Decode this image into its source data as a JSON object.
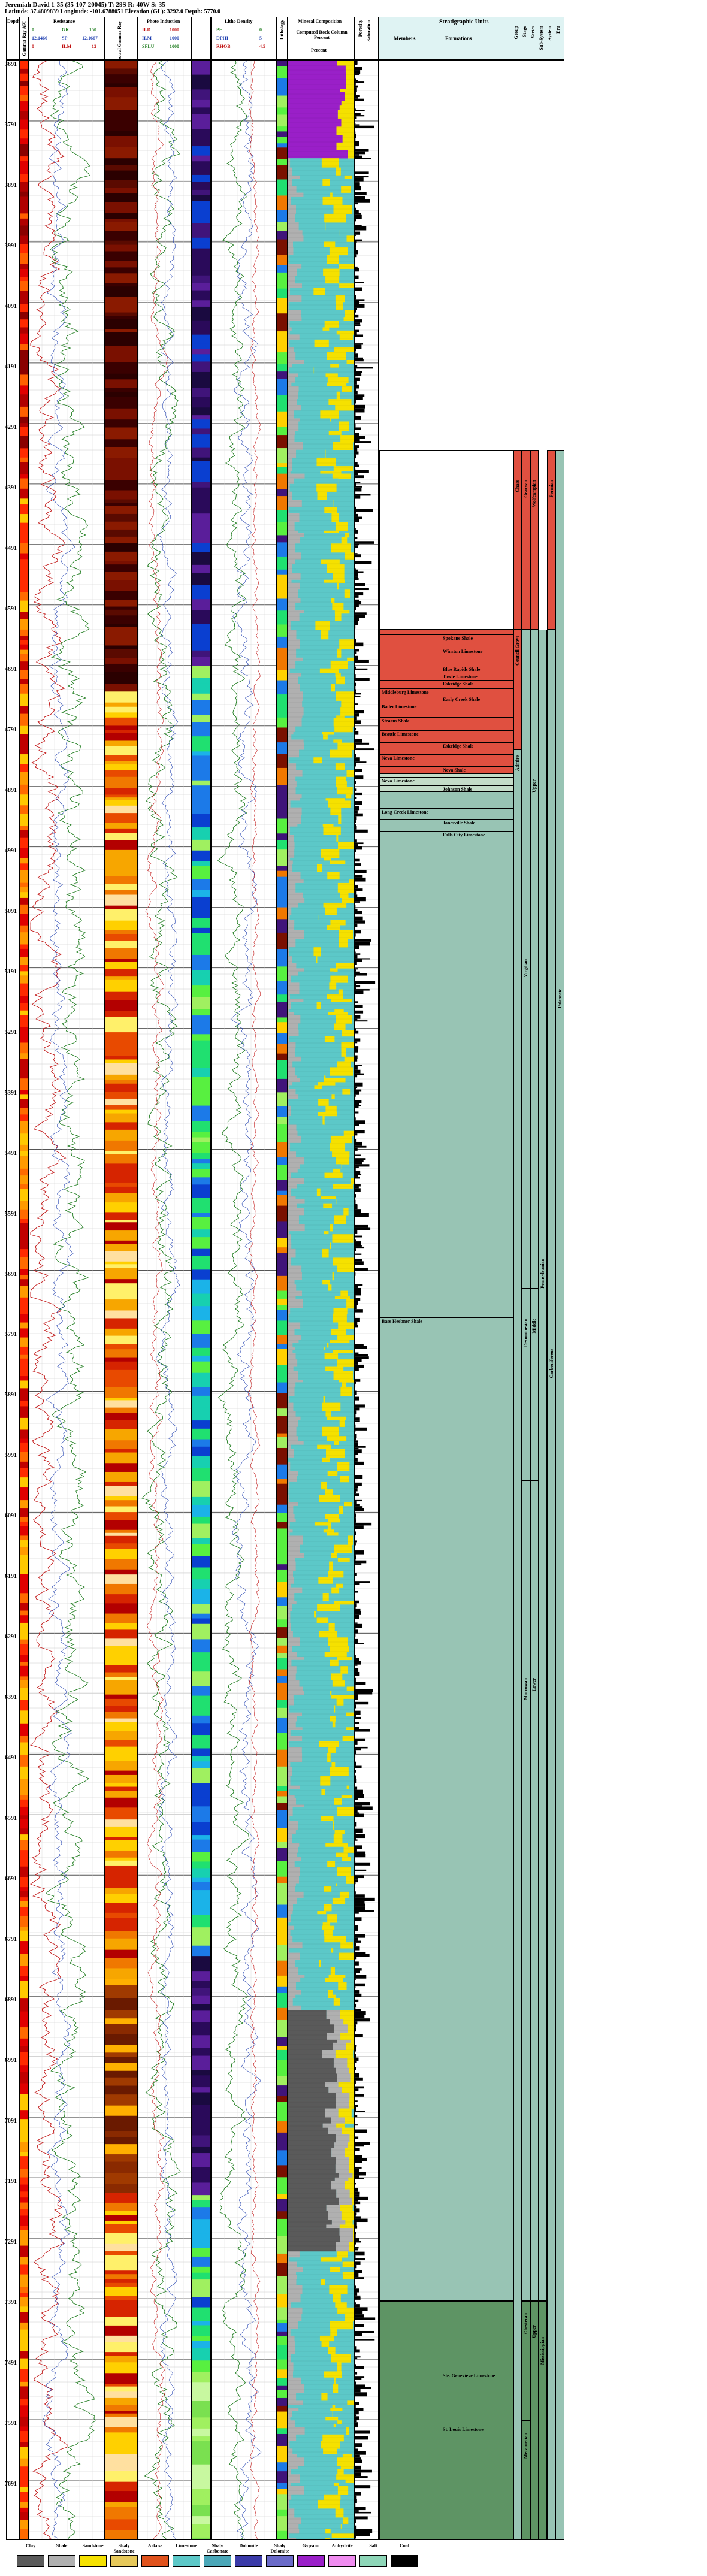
{
  "header": {
    "title": "Jeremiah David 1-35 (35-107-20045) T: 29S R: 40W S: 35",
    "subtitle": "Latitude: 37.4809839 Longitude: -101.6788051 Elevation (GL): 3292.0 Depth: 5770.0"
  },
  "tracks": {
    "depth_label": "Depth",
    "gr_label": "Gamma Ray API",
    "resistance_label": "Resistance",
    "res_labels": [
      "R",
      "GR",
      "SN",
      "LN"
    ],
    "res_values": [
      [
        "0",
        "GR",
        "150"
      ],
      [
        "12.1466",
        "SP",
        "12.1667"
      ],
      [
        "0",
        "ILM",
        "12"
      ]
    ],
    "spectral_label": "Spectral Gamma Ray",
    "photo_label": "Photo Induction",
    "photo_values": [
      "ILD",
      "1000",
      "ILM",
      "1000",
      "SFLU",
      "1000"
    ],
    "lith_density_label": "Litho Density",
    "lith_density_values": [
      "PE",
      "0",
      "DPHI",
      "5",
      "RHOB",
      "4.5"
    ],
    "lithology_label": "Lithology",
    "mineral_label": "Mineral Composition",
    "computed_label": "Computed Rock Column Percent",
    "computed_sub": "Percent",
    "porosity_label": "Porosity",
    "saturation_label": "Saturation"
  },
  "depth_ticks": [
    "3691",
    "3791",
    "3891",
    "3991",
    "4091",
    "4191",
    "4291",
    "4391",
    "4491",
    "4591",
    "4691",
    "4791",
    "4891",
    "4991",
    "5091",
    "5191",
    "5291",
    "5391",
    "5491",
    "5591",
    "5691",
    "5791",
    "5891",
    "5991",
    "6091",
    "6191",
    "6291",
    "6391",
    "6491",
    "6591",
    "6691",
    "6791",
    "6891",
    "6991",
    "7091",
    "7191",
    "7291",
    "7391",
    "7491",
    "7591",
    "7691"
  ],
  "strat": {
    "header": "Stratigraphic Units",
    "members_label": "Members",
    "formations_label": "Formations",
    "col_labels": [
      "Group",
      "Stage",
      "Series",
      "Sub-System",
      "System",
      "Era"
    ],
    "formations": [
      {
        "name": "Spokane Shale"
      },
      {
        "name": "Winston Limestone"
      },
      {
        "name": "Blue Rapids Shale"
      },
      {
        "name": "Towle Limestone"
      },
      {
        "name": "Eskridge Shale"
      },
      {
        "name": "Middleburg Limestone"
      },
      {
        "name": "Easly Creek Shale"
      },
      {
        "name": "Bader Limestone"
      },
      {
        "name": "Stearns Shale"
      },
      {
        "name": "Beattie Limestone"
      },
      {
        "name": "Eskridge Shale"
      },
      {
        "name": "Neva Limestone"
      },
      {
        "name": "Neva Shale"
      },
      {
        "name": "Neva Limestone"
      },
      {
        "name": "Johnson Shale"
      },
      {
        "name": "Long Creek Limestone"
      },
      {
        "name": "Janesville Shale"
      },
      {
        "name": "Falls City Limestone"
      },
      {
        "name": "Base Heebner Shale"
      },
      {
        "name": "Ste. Genevieve Limestone"
      },
      {
        "name": "St. Louis Limestone"
      }
    ],
    "groups": [
      "Chase",
      "Council Grove",
      "Admire"
    ],
    "stages": [
      "Virgilian",
      "Missourian",
      "Desmoinesian",
      "Atokan",
      "Morrowan",
      "Chesteran",
      "Meramecian"
    ],
    "series": [
      "Wolfcampian",
      "Gearyan",
      "Upper",
      "Middle",
      "Lower",
      "Upper"
    ],
    "subsystems": [
      "Pennsylvanian",
      "Mississippian"
    ],
    "systems": [
      "Permian",
      "Carboniferous"
    ],
    "era": "Paleozoic"
  },
  "legend": [
    {
      "label": "Clay",
      "color": "#5a5a5a"
    },
    {
      "label": "Shale",
      "color": "#b0b0b0"
    },
    {
      "label": "Sandstone",
      "color": "#f5e100"
    },
    {
      "label": "Shaly Sandstone",
      "color": "#e6c85a"
    },
    {
      "label": "Arkose",
      "color": "#e0521c"
    },
    {
      "label": "Limestone",
      "color": "#5cc8c8"
    },
    {
      "label": "Shaly Carbonate",
      "color": "#4aa7b8"
    },
    {
      "label": "Dolomite",
      "color": "#3a3aa8"
    },
    {
      "label": "Shaly Dolomite",
      "color": "#6a6ac8"
    },
    {
      "label": "Gypsum",
      "color": "#9a1fc8"
    },
    {
      "label": "Anhydrite",
      "color": "#f08cf0"
    },
    {
      "label": "Salt",
      "color": "#8ed6b8"
    },
    {
      "label": "Coal",
      "color": "#000000"
    }
  ]
}
